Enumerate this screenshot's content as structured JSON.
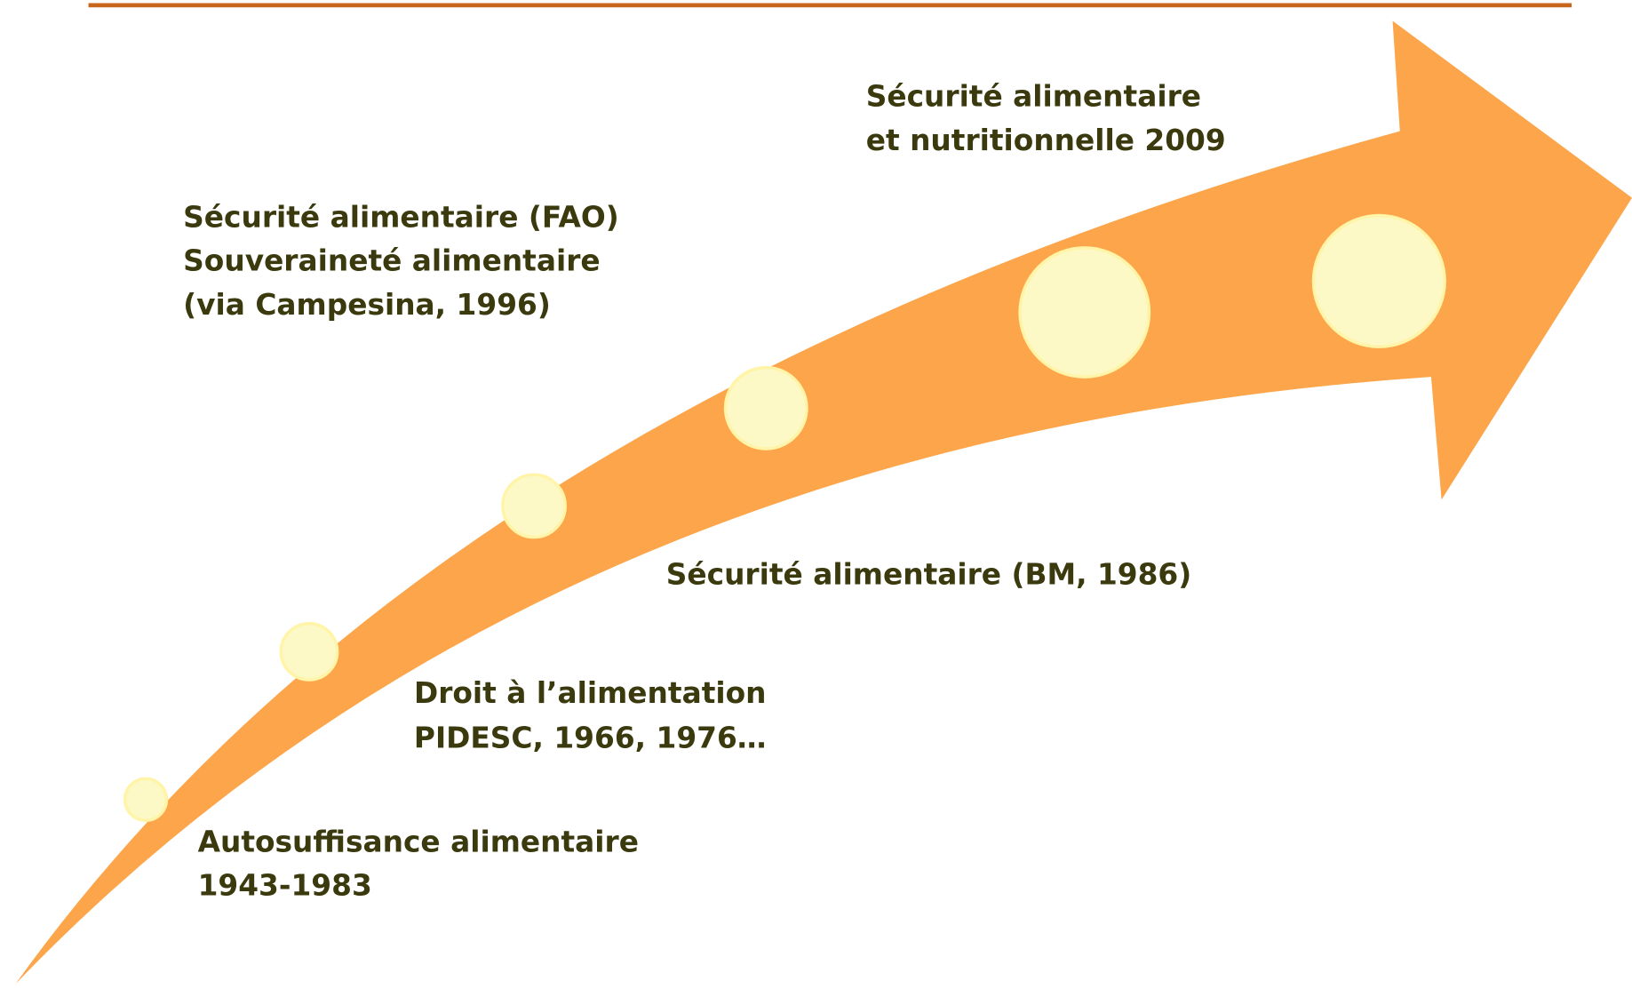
{
  "milestones": [
    {
      "lines": [
        "Autosuffisance alimentaire",
        "1943-1983"
      ]
    },
    {
      "lines": [
        "Droit à l’alimentation",
        "PIDESC, 1966, 1976…"
      ]
    },
    {
      "lines": [
        "Sécurité alimentaire (BM, 1986)"
      ]
    },
    {
      "lines": [
        "Sécurité alimentaire (FAO)",
        "Souveraineté alimentaire",
        "(via Campesina, 1996)"
      ]
    },
    {
      "lines": [
        "Sécurité alimentaire",
        "et nutritionnelle 2009"
      ]
    }
  ]
}
